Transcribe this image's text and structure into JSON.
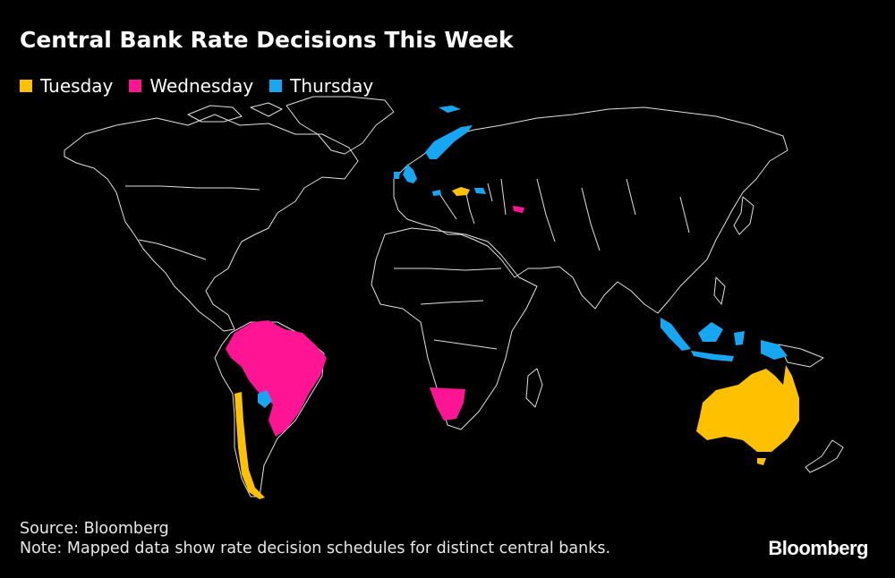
{
  "title": "Central Bank Rate Decisions This Week",
  "legend": [
    {
      "label": "Tuesday",
      "color": "#FFC000"
    },
    {
      "label": "Wednesday",
      "color": "#FF1493"
    },
    {
      "label": "Thursday",
      "color": "#17A6F2"
    }
  ],
  "regions": {
    "tuesday": [
      "Australia",
      "Chile",
      "Hungary"
    ],
    "wednesday": [
      "Brazil",
      "Namibia",
      "Georgia"
    ],
    "thursday": [
      "United Kingdom",
      "Norway",
      "Switzerland",
      "Paraguay",
      "Indonesia",
      "Ukraine"
    ]
  },
  "source": "Source: Bloomberg",
  "note": "Note: Mapped data show rate decision schedules for distinct central banks.",
  "brand": "Bloomberg"
}
